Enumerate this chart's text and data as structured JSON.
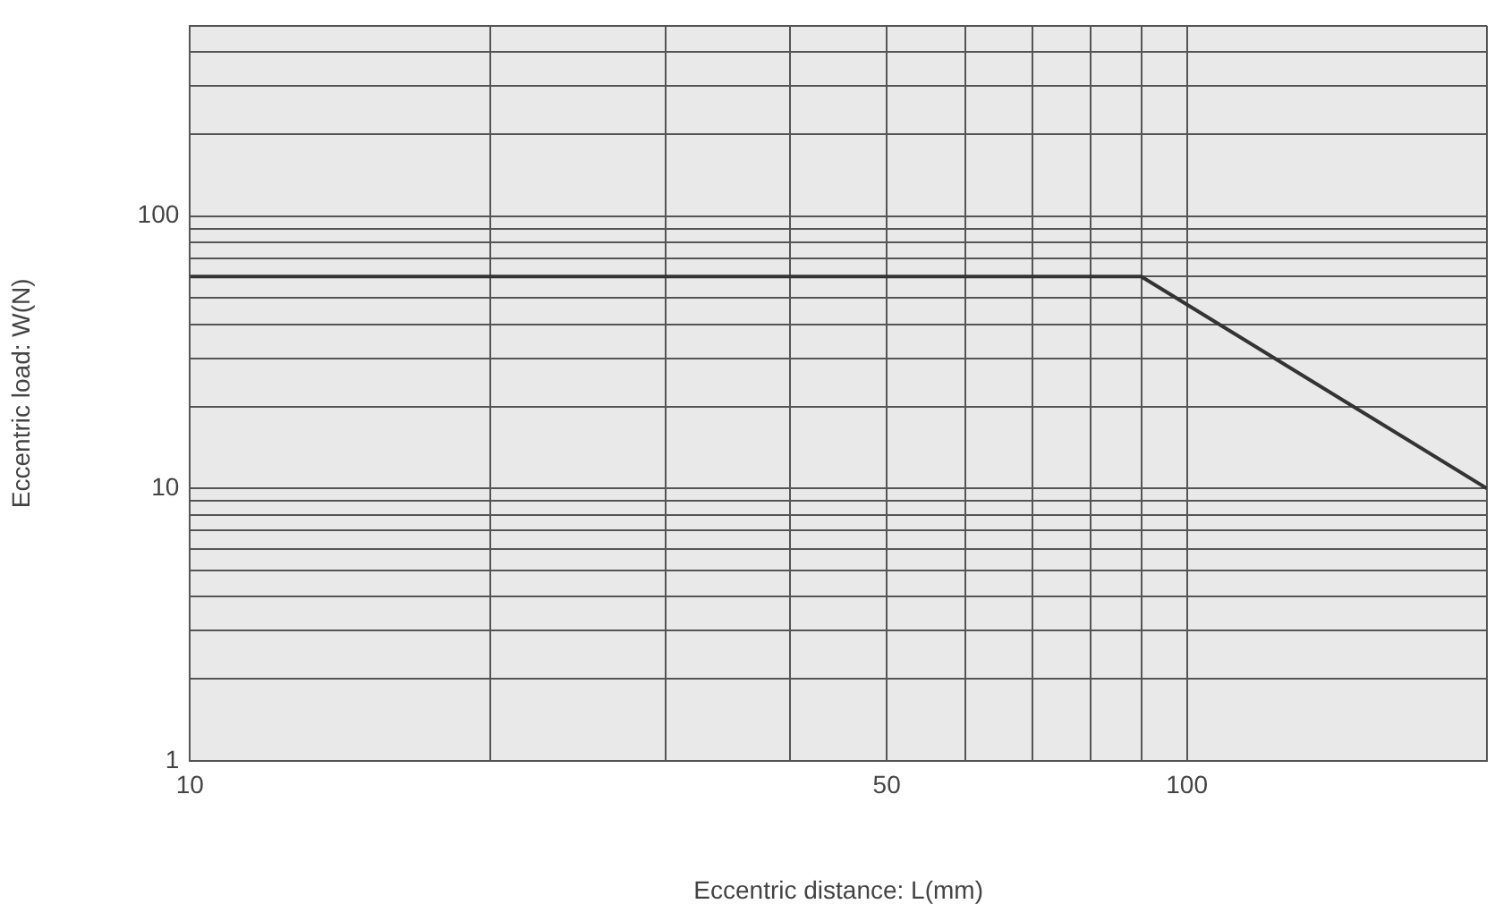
{
  "chart_data": {
    "type": "line",
    "xlabel": "Eccentric distance: L(mm)",
    "ylabel": "Eccentric load: W(N)",
    "log": "xy",
    "grid": true,
    "legend": false,
    "marker": "none",
    "line_style": "solid",
    "xlim": [
      10,
      200
    ],
    "ylim": [
      1,
      500
    ],
    "xticks": [
      10,
      {
        "value": 20,
        "label": null
      },
      {
        "value": 30,
        "label": null
      },
      {
        "value": 40,
        "label": null
      },
      50,
      {
        "value": 60,
        "label": null
      },
      {
        "value": 70,
        "label": null
      },
      {
        "value": 80,
        "label": null
      },
      {
        "value": 90,
        "label": null
      },
      100,
      {
        "value": 200,
        "label": null
      }
    ],
    "yticks": [
      1,
      {
        "value": 2,
        "label": null
      },
      {
        "value": 3,
        "label": null
      },
      {
        "value": 4,
        "label": null
      },
      {
        "value": 5,
        "label": null
      },
      {
        "value": 6,
        "label": null
      },
      {
        "value": 7,
        "label": null
      },
      {
        "value": 8,
        "label": null
      },
      {
        "value": 9,
        "label": null
      },
      10,
      {
        "value": 20,
        "label": null
      },
      {
        "value": 30,
        "label": null
      },
      {
        "value": 40,
        "label": null
      },
      {
        "value": 50,
        "label": null
      },
      {
        "value": 60,
        "label": null
      },
      {
        "value": 70,
        "label": null
      },
      {
        "value": 80,
        "label": null
      },
      {
        "value": 90,
        "label": null
      },
      100,
      {
        "value": 200,
        "label": null
      },
      {
        "value": 300,
        "label": null
      },
      {
        "value": 400,
        "label": null
      },
      {
        "value": 500,
        "label": null
      }
    ],
    "series": [
      {
        "color": "#333333",
        "x": [
          10,
          90,
          200
        ],
        "values": [
          60,
          60,
          10
        ]
      }
    ]
  }
}
